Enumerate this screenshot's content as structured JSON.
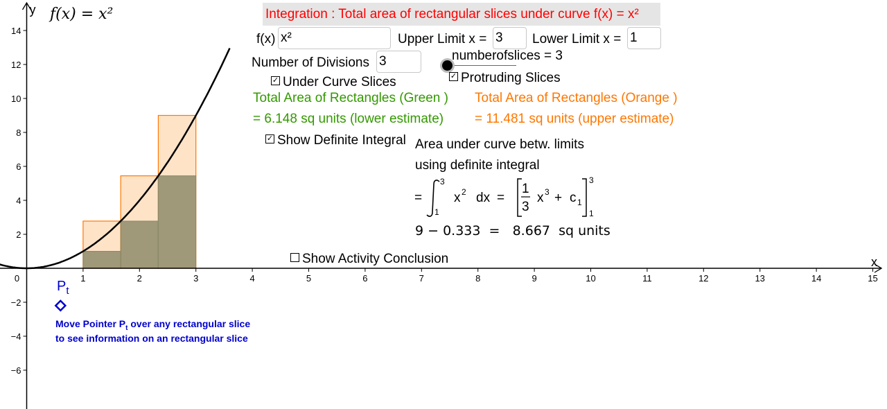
{
  "title": "Integration : Total area of rectangular slices under curve f(x) = x²",
  "function_label": "f(x)",
  "function_value": "x²",
  "upper_label": "Upper Limit x =",
  "upper_value": "3",
  "lower_label": "Lower Limit x =",
  "lower_value": "1",
  "divisions_label": "Number of Divisions",
  "divisions_value": "3",
  "slices_text": "numberofslices = 3",
  "under_curve": {
    "label": "Under Curve Slices",
    "checked": true
  },
  "protruding": {
    "label": "Protruding Slices",
    "checked": true
  },
  "green_line1": "Total Area of Rectangles (Green )",
  "green_line2": "= 6.148 sq units (lower estimate)",
  "orange_line1": "Total Area of Rectangles (Orange )",
  "orange_line2": "= 11.481 sq units (upper estimate)",
  "show_integral": {
    "label": "Show Definite Integral",
    "checked": true
  },
  "integral_text1": "Area under curve betw. limits",
  "integral_text2": "using definite integral",
  "integral_result": "9 − 0.333  =   8.667  sq units",
  "conclusion": {
    "label": "Show Activity Conclusion",
    "checked": false
  },
  "pointer_name": "P",
  "pointer_sub": "t",
  "note_line1_a": "Move Pointer P",
  "note_line1_sub": "t",
  "note_line1_b": " over any rectangular slice",
  "note_line2": "to see information on an rectangular slice",
  "curve_label": "f(x) = x²",
  "colors": {
    "title": "#ff0000",
    "green": "#339900",
    "orange": "#ff7700",
    "pointer": "#0000cc"
  },
  "chart_data": {
    "type": "area",
    "function": "x^2",
    "xlim": [
      0,
      15
    ],
    "ylim": [
      -6,
      14
    ],
    "x_ticks": [
      0,
      1,
      2,
      3,
      4,
      5,
      6,
      7,
      8,
      9,
      10,
      11,
      12,
      13,
      14,
      15
    ],
    "y_ticks": [
      -6,
      -4,
      -2,
      2,
      4,
      6,
      8,
      10,
      12,
      14
    ],
    "x_axis_label": "x",
    "y_axis_label": "y",
    "lower_limit": 1,
    "upper_limit": 3,
    "slices": [
      {
        "x0": 1,
        "x1": 1.667,
        "lower_height": 1,
        "upper_height": 2.778
      },
      {
        "x0": 1.667,
        "x1": 2.333,
        "lower_height": 2.778,
        "upper_height": 5.444
      },
      {
        "x0": 2.333,
        "x1": 3,
        "lower_height": 5.444,
        "upper_height": 9
      }
    ],
    "pointer": {
      "x": 0.6,
      "y": -2.2
    }
  }
}
